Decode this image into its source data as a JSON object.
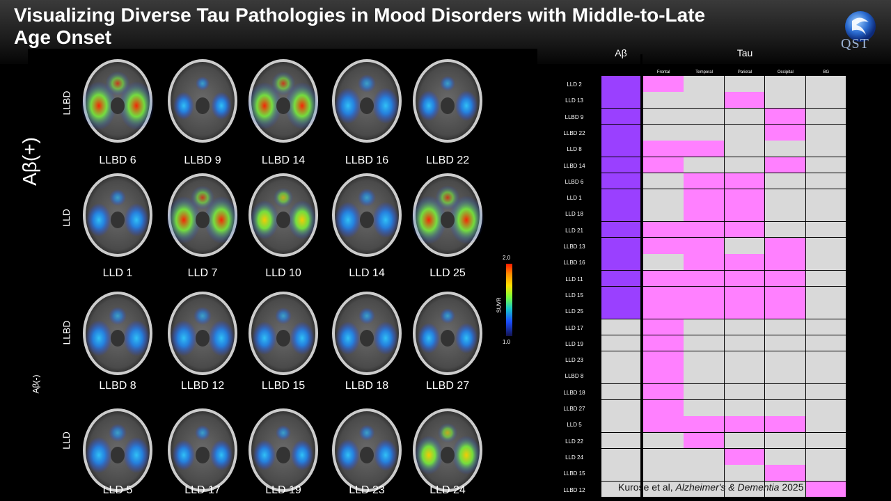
{
  "title": "Visualizing Diverse Tau Pathologies in Mood Disorders with Middle-to-Late Age Onset",
  "logo_text": "QST",
  "groups": {
    "ab_pos": "Aβ(+)",
    "ab_neg": "Aβ(-)"
  },
  "row_labels": [
    "LLBD",
    "LLD",
    "LLBD",
    "LLD"
  ],
  "scan_rows": [
    [
      "LLBD 6",
      "LLBD 9",
      "LLBD 14",
      "LLBD 16",
      "LLBD 22"
    ],
    [
      "LLD 1",
      "LLD 7",
      "LLD 10",
      "LLD 14",
      "LLD 25"
    ],
    [
      "LLBD 8",
      "LLBD 12",
      "LLBD 15",
      "LLBD 18",
      "LLBD 27"
    ],
    [
      "LLD 5",
      "LLD 17",
      "LLD 19",
      "LLD 23",
      "LLD 24"
    ]
  ],
  "colorbar": {
    "max": "2.0",
    "min": "1.0",
    "label": "SUVR"
  },
  "chart_data": {
    "type": "heatmap",
    "column_groups": {
      "amyloid": "Aβ",
      "tau": "Tau"
    },
    "tau_regions": [
      "Frontal",
      "Temporal",
      "Parietal",
      "Occipital",
      "BG"
    ],
    "subjects": [
      "LLD 2",
      "LLD 13",
      "LLBD 9",
      "LLBD 22",
      "LLD 8",
      "LLBD 14",
      "LLBD 6",
      "LLD 1",
      "LLD 18",
      "LLD 21",
      "LLBD 13",
      "LLBD 16",
      "LLD 11",
      "LLD 15",
      "LLD 25",
      "LLD 17",
      "LLD 19",
      "LLD 23",
      "LLBD 8",
      "LLBD 18",
      "LLBD 27",
      "LLD 5",
      "LLD 22",
      "LLD 24",
      "LLBD 15",
      "LLBD 12"
    ],
    "amyloid_positive": [
      1,
      1,
      1,
      1,
      1,
      1,
      1,
      1,
      1,
      1,
      1,
      1,
      1,
      1,
      1,
      0,
      0,
      0,
      0,
      0,
      0,
      0,
      0,
      0,
      0,
      0
    ],
    "tau_positive": [
      [
        1,
        0,
        0,
        0,
        0
      ],
      [
        0,
        0,
        1,
        0,
        0
      ],
      [
        0,
        0,
        0,
        1,
        0
      ],
      [
        0,
        0,
        0,
        1,
        0
      ],
      [
        1,
        1,
        0,
        0,
        0
      ],
      [
        1,
        0,
        0,
        1,
        0
      ],
      [
        0,
        1,
        1,
        0,
        0
      ],
      [
        0,
        1,
        1,
        0,
        0
      ],
      [
        0,
        1,
        1,
        0,
        0
      ],
      [
        1,
        1,
        1,
        0,
        0
      ],
      [
        1,
        1,
        0,
        1,
        0
      ],
      [
        0,
        1,
        1,
        1,
        0
      ],
      [
        1,
        1,
        1,
        1,
        0
      ],
      [
        1,
        1,
        1,
        1,
        0
      ],
      [
        1,
        1,
        1,
        1,
        0
      ],
      [
        1,
        0,
        0,
        0,
        0
      ],
      [
        1,
        0,
        0,
        0,
        0
      ],
      [
        1,
        0,
        0,
        0,
        0
      ],
      [
        1,
        0,
        0,
        0,
        0
      ],
      [
        1,
        0,
        0,
        0,
        0
      ],
      [
        1,
        0,
        0,
        0,
        0
      ],
      [
        1,
        1,
        1,
        1,
        0
      ],
      [
        0,
        1,
        0,
        0,
        0
      ],
      [
        0,
        0,
        1,
        0,
        0
      ],
      [
        0,
        0,
        0,
        1,
        0
      ],
      [
        0,
        0,
        0,
        0,
        1
      ]
    ],
    "colors": {
      "amyloid_positive": "#9a40ff",
      "tau_positive": "#ff80ff",
      "negative": "#d9d9d9"
    }
  },
  "citation": {
    "authors": "Kurose et al, ",
    "journal": "Alzheimer's & Dementia",
    "year": " 2025"
  }
}
